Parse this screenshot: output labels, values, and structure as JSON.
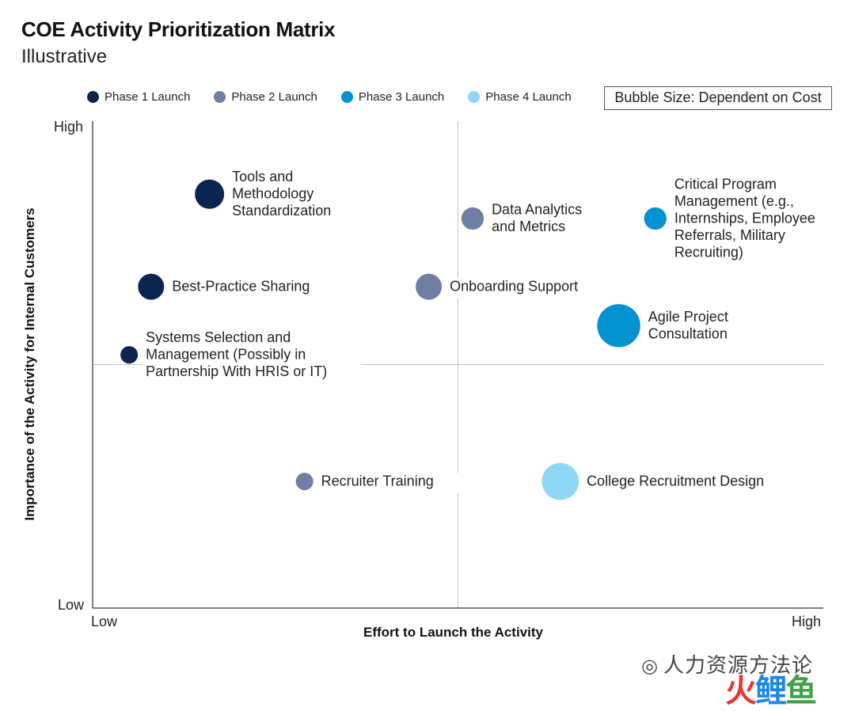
{
  "header": {
    "title": "COE Activity Prioritization Matrix",
    "subtitle": "Illustrative"
  },
  "legend": {
    "items": [
      {
        "label": "Phase 1 Launch",
        "color": "#0b2550"
      },
      {
        "label": "Phase 2 Launch",
        "color": "#6e7fa3"
      },
      {
        "label": "Phase 3 Launch",
        "color": "#0493d1"
      },
      {
        "label": "Phase 4 Launch",
        "color": "#8fd8f5"
      }
    ],
    "size_note": "Bubble Size: Dependent on Cost"
  },
  "axes": {
    "xlabel": "Effort to Launch the Activity",
    "ylabel": "Importance of the Activity for Internal Customers",
    "x_low": "Low",
    "x_high": "High",
    "y_low": "Low",
    "y_high": "High"
  },
  "chart_data": {
    "type": "scatter",
    "title": "COE Activity Prioritization Matrix",
    "subtitle": "Illustrative",
    "xlabel": "Effort to Launch the Activity",
    "ylabel": "Importance of the Activity for Internal Customers",
    "xlim": [
      0,
      100
    ],
    "ylim": [
      0,
      100
    ],
    "quadrant_lines": {
      "x": 50,
      "y": 50
    },
    "size_encoding": "Bubble Size: Dependent on Cost",
    "series": [
      {
        "name": "Phase 1 Launch",
        "color": "#0b2550",
        "points": [
          {
            "label": [
              "Tools and",
              "Methodology",
              "Standardization"
            ],
            "x": 16,
            "y": 85,
            "size": 4
          },
          {
            "label": [
              "Best-Practice Sharing"
            ],
            "x": 8,
            "y": 66,
            "size": 3
          },
          {
            "label": [
              "Systems Selection and",
              "Management (Possibly in",
              "Partnership With HRIS or IT)"
            ],
            "x": 5,
            "y": 52,
            "size": 1
          }
        ]
      },
      {
        "name": "Phase 2 Launch",
        "color": "#6e7fa3",
        "points": [
          {
            "label": [
              "Data Analytics",
              "and Metrics"
            ],
            "x": 52,
            "y": 80,
            "size": 2
          },
          {
            "label": [
              "Onboarding Support"
            ],
            "x": 46,
            "y": 66,
            "size": 3
          },
          {
            "label": [
              "Recruiter Training"
            ],
            "x": 29,
            "y": 26,
            "size": 1
          }
        ]
      },
      {
        "name": "Phase 3 Launch",
        "color": "#0493d1",
        "points": [
          {
            "label": [
              "Critical Program",
              "Management (e.g.,",
              "Internships, Employee",
              "Referrals, Military",
              "Recruiting)"
            ],
            "x": 77,
            "y": 80,
            "size": 2
          },
          {
            "label": [
              "Agile Project",
              "Consultation"
            ],
            "x": 72,
            "y": 58,
            "size": 10
          }
        ]
      },
      {
        "name": "Phase 4 Launch",
        "color": "#8fd8f5",
        "points": [
          {
            "label": [
              "College Recruitment Design"
            ],
            "x": 64,
            "y": 26,
            "size": 7
          }
        ]
      }
    ]
  },
  "watermark": {
    "text": "人力资源方法论",
    "icon": "wechat-icon",
    "logo": [
      "火",
      "鲤",
      "鱼"
    ]
  }
}
